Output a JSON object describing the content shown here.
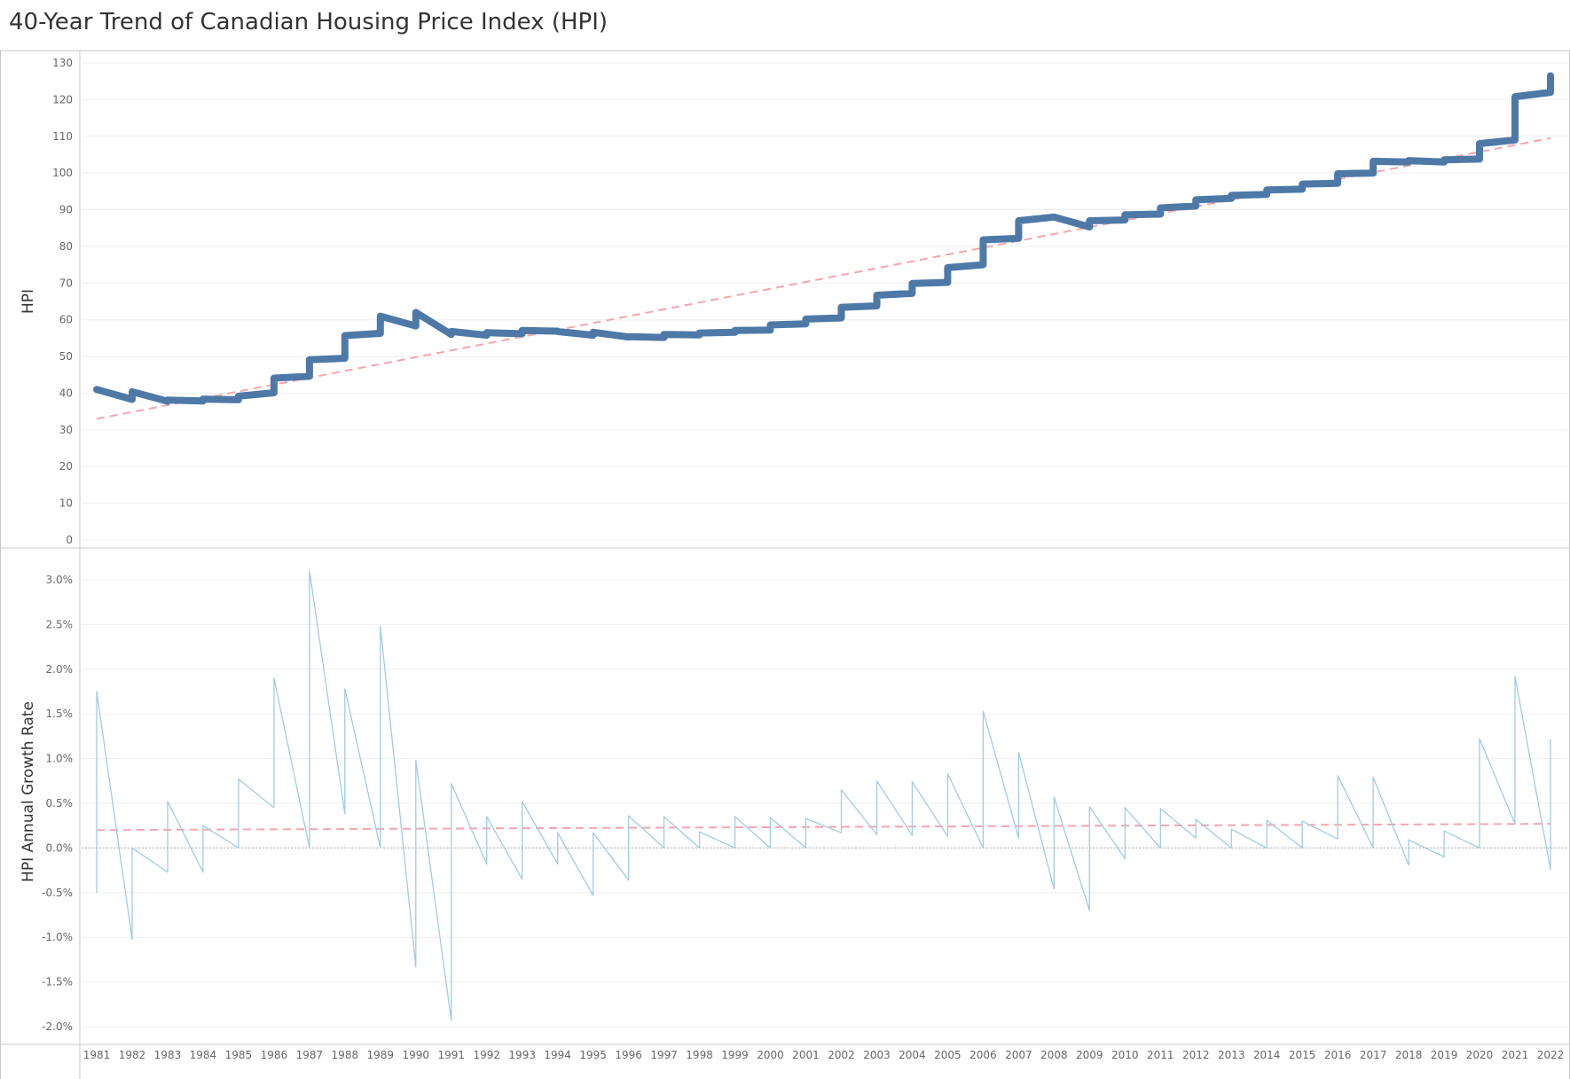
{
  "title": "40-Year Trend of Canadian Housing Price Index (HPI)",
  "chart_data": [
    {
      "type": "line",
      "title": "40-Year Trend of Canadian Housing Price Index (HPI)",
      "xlabel": "",
      "ylabel": "HPI",
      "ylim": [
        0,
        130
      ],
      "yticks": [
        0,
        10,
        20,
        30,
        40,
        50,
        60,
        70,
        80,
        90,
        100,
        110,
        120,
        130
      ],
      "grid": true,
      "series": [
        {
          "color": "#4e79a7",
          "x": [
            "1981-01",
            "1982-01",
            "1982-01",
            "1983-01",
            "1983-01",
            "1984-01",
            "1984-01",
            "1985-01",
            "1985-01",
            "1986-01",
            "1986-01",
            "1987-01",
            "1987-01",
            "1988-01",
            "1988-01",
            "1989-01",
            "1989-01",
            "1990-01",
            "1990-01",
            "1991-01",
            "1991-01",
            "1992-01",
            "1992-01",
            "1993-01",
            "1993-01",
            "1994-01",
            "1994-01",
            "1995-01",
            "1995-01",
            "1996-01",
            "1996-01",
            "1997-01",
            "1997-01",
            "1998-01",
            "1998-01",
            "1999-01",
            "1999-01",
            "2000-01",
            "2000-01",
            "2001-01",
            "2001-01",
            "2002-01",
            "2002-01",
            "2003-01",
            "2003-01",
            "2004-01",
            "2004-01",
            "2005-01",
            "2005-01",
            "2006-01",
            "2006-01",
            "2007-01",
            "2007-01",
            "2008-01",
            "2008-01",
            "2009-01",
            "2009-01",
            "2010-01",
            "2010-01",
            "2011-01",
            "2011-01",
            "2012-01",
            "2012-01",
            "2013-01",
            "2013-01",
            "2014-01",
            "2014-01",
            "2015-01",
            "2015-01",
            "2016-01",
            "2016-01",
            "2017-01",
            "2017-01",
            "2018-01",
            "2018-01",
            "2019-01",
            "2019-01",
            "2020-01",
            "2020-01",
            "2021-01",
            "2021-01",
            "2022-01",
            "2022-01"
          ],
          "values": [
            41,
            38.3,
            40.4,
            37.8,
            38.1,
            37.9,
            38.4,
            38.2,
            39.2,
            40.1,
            44.1,
            44.6,
            49.1,
            49.5,
            55.7,
            56.3,
            61.0,
            58.3,
            62.0,
            56.0,
            56.8,
            55.8,
            56.5,
            56.2,
            57.1,
            56.9,
            56.8,
            55.8,
            56.6,
            55.3,
            55.4,
            55.2,
            56.0,
            55.9,
            56.4,
            56.6,
            57.1,
            57.2,
            58.6,
            58.9,
            60.2,
            60.5,
            63.4,
            63.8,
            66.7,
            67.2,
            69.9,
            70.2,
            74.2,
            75.0,
            81.8,
            82.2,
            87.0,
            88.0,
            88.0,
            85.3,
            87.0,
            87.2,
            88.6,
            88.8,
            90.5,
            91.0,
            92.7,
            93.1,
            93.9,
            94.2,
            95.4,
            95.6,
            97.0,
            97.2,
            99.8,
            100.0,
            103.2,
            103.0,
            103.4,
            103.0,
            103.6,
            103.8,
            108.0,
            109.0,
            120.8,
            122.0,
            126.5
          ]
        }
      ],
      "trend_line": {
        "color": "#f4a6ab",
        "style": "dashed",
        "x": [
          "1981-01",
          "2022-01"
        ],
        "values": [
          33,
          109.5
        ]
      }
    },
    {
      "type": "line",
      "xlabel": "",
      "ylabel": "HPI Annual Growth Rate",
      "ylim": [
        -2.0,
        3.0
      ],
      "y_unit": "%",
      "yticks": [
        -2.0,
        -1.5,
        -1.0,
        -0.5,
        0.0,
        0.5,
        1.0,
        1.5,
        2.0,
        2.5,
        3.0
      ],
      "ytick_labels": [
        "-2.0%",
        "-1.5%",
        "-1.0%",
        "-0.5%",
        "0.0%",
        "0.5%",
        "1.0%",
        "1.5%",
        "2.0%",
        "2.5%",
        "3.0%"
      ],
      "grid": true,
      "zero_line": true,
      "x_categories": [
        "1981",
        "1982",
        "1983",
        "1984",
        "1985",
        "1986",
        "1987",
        "1988",
        "1989",
        "1990",
        "1991",
        "1992",
        "1993",
        "1994",
        "1995",
        "1996",
        "1997",
        "1998",
        "1999",
        "2000",
        "2001",
        "2002",
        "2003",
        "2004",
        "2005",
        "2006",
        "2007",
        "2008",
        "2009",
        "2010",
        "2011",
        "2012",
        "2013",
        "2014",
        "2015",
        "2016",
        "2017",
        "2018",
        "2019",
        "2020",
        "2021",
        "2022"
      ],
      "series": [
        {
          "color": "#a0cbe8",
          "x": [
            "1981-01",
            "1981-01",
            "1982-01",
            "1982-01",
            "1983-01",
            "1983-01",
            "1984-01",
            "1984-01",
            "1985-01",
            "1985-01",
            "1986-01",
            "1986-01",
            "1987-01",
            "1987-01",
            "1988-01",
            "1988-01",
            "1989-01",
            "1989-01",
            "1990-01",
            "1990-01",
            "1991-01",
            "1991-01",
            "1992-01",
            "1992-01",
            "1993-01",
            "1993-01",
            "1994-01",
            "1994-01",
            "1995-01",
            "1995-01",
            "1996-01",
            "1996-01",
            "1997-01",
            "1997-01",
            "1998-01",
            "1998-01",
            "1999-01",
            "1999-01",
            "2000-01",
            "2000-01",
            "2001-01",
            "2001-01",
            "2002-01",
            "2002-01",
            "2003-01",
            "2003-01",
            "2004-01",
            "2004-01",
            "2005-01",
            "2005-01",
            "2006-01",
            "2006-01",
            "2007-01",
            "2007-01",
            "2008-01",
            "2008-01",
            "2009-01",
            "2009-01",
            "2010-01",
            "2010-01",
            "2011-01",
            "2011-01",
            "2012-01",
            "2012-01",
            "2013-01",
            "2013-01",
            "2014-01",
            "2014-01",
            "2015-01",
            "2015-01",
            "2016-01",
            "2016-01",
            "2017-01",
            "2017-01",
            "2018-01",
            "2018-01",
            "2019-01",
            "2019-01",
            "2020-01",
            "2020-01",
            "2021-01",
            "2021-01",
            "2022-01",
            "2022-01"
          ],
          "values": [
            -0.5,
            1.75,
            -1.02,
            0.0,
            -0.27,
            0.52,
            -0.27,
            0.25,
            0.0,
            0.77,
            0.45,
            1.9,
            0.0,
            3.1,
            0.38,
            1.78,
            0.0,
            2.48,
            -1.33,
            0.98,
            -1.93,
            0.72,
            -0.18,
            0.35,
            -0.35,
            0.52,
            -0.18,
            0.17,
            -0.53,
            0.17,
            -0.36,
            0.36,
            0.0,
            0.35,
            0.0,
            0.18,
            0.0,
            0.35,
            0.0,
            0.34,
            0.0,
            0.33,
            0.17,
            0.65,
            0.15,
            0.75,
            0.14,
            0.74,
            0.13,
            0.83,
            0.0,
            1.53,
            0.11,
            1.07,
            -0.46,
            0.57,
            -0.7,
            0.46,
            -0.12,
            0.45,
            0.0,
            0.44,
            0.11,
            0.32,
            0.0,
            0.21,
            0.0,
            0.31,
            0.0,
            0.3,
            0.1,
            0.81,
            0.0,
            0.79,
            -0.19,
            0.09,
            -0.1,
            0.19,
            0.0,
            1.22,
            0.27,
            1.92,
            -0.24,
            1.21
          ]
        }
      ],
      "trend_line": {
        "color": "#f4a6ab",
        "style": "dashed",
        "x": [
          "1981-01",
          "2022-01"
        ],
        "values": [
          0.2,
          0.27
        ]
      }
    }
  ]
}
